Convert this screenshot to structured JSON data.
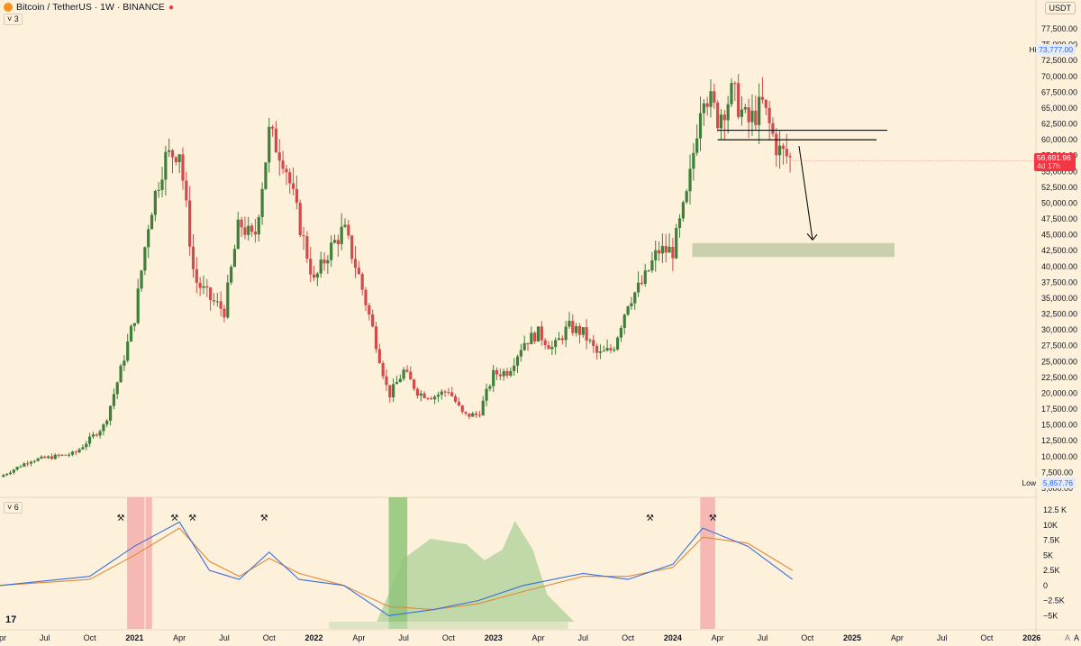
{
  "header": {
    "title": "Bitcoin / TetherUS · 1W · BINANCE",
    "pane1_collapse": "3",
    "pane2_collapse": "6",
    "currency": "USDT"
  },
  "price_scale": {
    "ticks": [
      "77,500.00",
      "75,000.00",
      "72,500.00",
      "70,000.00",
      "67,500.00",
      "65,000.00",
      "62,500.00",
      "60,000.00",
      "57,500.00",
      "55,000.00",
      "52,500.00",
      "50,000.00",
      "47,500.00",
      "45,000.00",
      "42,500.00",
      "40,000.00",
      "37,500.00",
      "35,000.00",
      "32,500.00",
      "30,000.00",
      "27,500.00",
      "25,000.00",
      "22,500.00",
      "20,000.00",
      "17,500.00",
      "15,000.00",
      "12,500.00",
      "10,000.00",
      "7,500.00",
      "5,000.00"
    ],
    "high_label": "High",
    "high_value": "73,777.00",
    "low_label": "Low",
    "low_value": "5,857.76",
    "current_price": "56,691.96",
    "countdown": "4d 17h"
  },
  "osc_scale": {
    "ticks": [
      "12.5 K",
      "10K",
      "7.5K",
      "5K",
      "2.5K",
      "0",
      "−2.5K",
      "−5K"
    ]
  },
  "time_axis": {
    "labels": [
      "Apr",
      "Jul",
      "Oct",
      "2021",
      "Apr",
      "Jul",
      "Oct",
      "2022",
      "Apr",
      "Jul",
      "Oct",
      "2023",
      "Apr",
      "Jul",
      "Oct",
      "2024",
      "Apr",
      "Jul",
      "Oct",
      "2025",
      "Apr",
      "Jul",
      "Oct",
      "2026",
      "A"
    ],
    "bold": [
      "2021",
      "2022",
      "2023",
      "2024",
      "2025",
      "2026"
    ]
  },
  "colors": {
    "up": "#3f7f3a",
    "down": "#d24b4b",
    "fast_line": "#3b6fd6",
    "slow_line": "#e08a3a",
    "zone": "#a8b98e",
    "bg": "#fdf1dc"
  },
  "chart_data": {
    "type": "candlestick",
    "symbol": "BTC/USDT",
    "interval": "1W",
    "ylim": [
      5000,
      77500
    ],
    "x": [
      "2020-04",
      "2020-07",
      "2020-10",
      "2021-01",
      "2021-04",
      "2021-07",
      "2021-10",
      "2022-01",
      "2022-04",
      "2022-07",
      "2022-10",
      "2023-01",
      "2023-04",
      "2023-07",
      "2023-10",
      "2024-01",
      "2024-04",
      "2024-07",
      "2024-10",
      "2025-01",
      "2025-04",
      "2025-07",
      "2025-10",
      "2026-01"
    ],
    "close_path": [
      [
        "2020-04",
        6800
      ],
      [
        "2020-06",
        9400
      ],
      [
        "2020-09",
        10500
      ],
      [
        "2020-11",
        15000
      ],
      [
        "2020-12",
        23000
      ],
      [
        "2021-01",
        32000
      ],
      [
        "2021-02",
        48000
      ],
      [
        "2021-03",
        57000
      ],
      [
        "2021-04",
        58500
      ],
      [
        "2021-05",
        38000
      ],
      [
        "2021-06",
        35000
      ],
      [
        "2021-07",
        33000
      ],
      [
        "2021-08",
        47000
      ],
      [
        "2021-09",
        44000
      ],
      [
        "2021-10",
        61000
      ],
      [
        "2021-11",
        57000
      ],
      [
        "2021-12",
        47000
      ],
      [
        "2022-01",
        37500
      ],
      [
        "2022-02",
        42500
      ],
      [
        "2022-03",
        46000
      ],
      [
        "2022-04",
        38500
      ],
      [
        "2022-05",
        29500
      ],
      [
        "2022-06",
        19500
      ],
      [
        "2022-07",
        23500
      ],
      [
        "2022-08",
        20000
      ],
      [
        "2022-09",
        19500
      ],
      [
        "2022-10",
        20500
      ],
      [
        "2022-11",
        16500
      ],
      [
        "2022-12",
        16600
      ],
      [
        "2023-01",
        23000
      ],
      [
        "2023-02",
        23500
      ],
      [
        "2023-03",
        28000
      ],
      [
        "2023-04",
        29500
      ],
      [
        "2023-05",
        27000
      ],
      [
        "2023-06",
        30500
      ],
      [
        "2023-07",
        29500
      ],
      [
        "2023-08",
        26000
      ],
      [
        "2023-09",
        27000
      ],
      [
        "2023-10",
        34500
      ],
      [
        "2023-11",
        37500
      ],
      [
        "2023-12",
        42500
      ],
      [
        "2024-01",
        42500
      ],
      [
        "2024-02",
        51500
      ],
      [
        "2024-03",
        68500
      ],
      [
        "2024-04",
        63500
      ],
      [
        "2024-05",
        67500
      ],
      [
        "2024-06",
        62500
      ],
      [
        "2024-07",
        65500
      ],
      [
        "2024-08",
        58500
      ],
      [
        "2024-09",
        56692
      ]
    ],
    "annotations": {
      "resistance_lines": [
        61500,
        60000
      ],
      "target_zone": [
        41500,
        43700
      ],
      "arrow": "down from ~61,000 to ~43,500"
    },
    "oscillator": {
      "ylim": [
        -6000,
        12500
      ],
      "fast": [
        [
          "2020-04",
          0
        ],
        [
          "2020-10",
          1500
        ],
        [
          "2021-01",
          6500
        ],
        [
          "2021-04",
          10500
        ],
        [
          "2021-06",
          2500
        ],
        [
          "2021-08",
          1000
        ],
        [
          "2021-10",
          5500
        ],
        [
          "2021-12",
          1000
        ],
        [
          "2022-03",
          0
        ],
        [
          "2022-06",
          -5000
        ],
        [
          "2022-09",
          -4000
        ],
        [
          "2022-12",
          -2500
        ],
        [
          "2023-03",
          0
        ],
        [
          "2023-07",
          2000
        ],
        [
          "2023-10",
          1000
        ],
        [
          "2024-01",
          3500
        ],
        [
          "2024-03",
          9500
        ],
        [
          "2024-06",
          6500
        ],
        [
          "2024-09",
          1000
        ]
      ],
      "slow": [
        [
          "2020-04",
          0
        ],
        [
          "2020-10",
          1000
        ],
        [
          "2021-01",
          5000
        ],
        [
          "2021-04",
          9500
        ],
        [
          "2021-06",
          4000
        ],
        [
          "2021-08",
          1500
        ],
        [
          "2021-10",
          4500
        ],
        [
          "2021-12",
          2000
        ],
        [
          "2022-03",
          0
        ],
        [
          "2022-06",
          -3500
        ],
        [
          "2022-09",
          -4000
        ],
        [
          "2022-12",
          -3000
        ],
        [
          "2023-03",
          -1000
        ],
        [
          "2023-07",
          1500
        ],
        [
          "2023-10",
          1500
        ],
        [
          "2024-01",
          3000
        ],
        [
          "2024-03",
          8000
        ],
        [
          "2024-06",
          7000
        ],
        [
          "2024-09",
          2500
        ]
      ]
    }
  }
}
